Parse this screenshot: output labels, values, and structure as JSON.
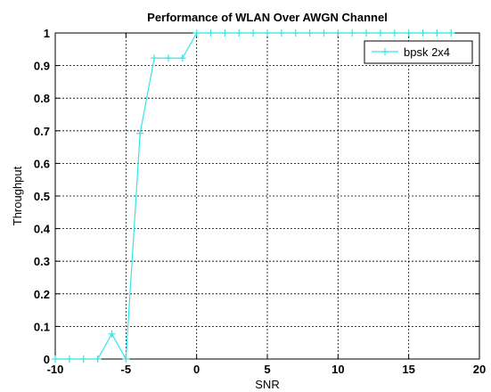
{
  "chart_data": {
    "type": "line",
    "title": "Performance of WLAN Over AWGN Channel",
    "xlabel": "SNR",
    "ylabel": "Throughput",
    "xlim": [
      -10,
      20
    ],
    "ylim": [
      0,
      1
    ],
    "xticks": [
      -10,
      -5,
      0,
      5,
      10,
      15,
      20
    ],
    "yticks": [
      0,
      0.1,
      0.2,
      0.3,
      0.4,
      0.5,
      0.6,
      0.7,
      0.8,
      0.9,
      1
    ],
    "xtick_labels": [
      "-10",
      "-5",
      "0",
      "5",
      "10",
      "15",
      "20"
    ],
    "ytick_labels": [
      "0",
      "0.1",
      "0.2",
      "0.3",
      "0.4",
      "0.5",
      "0.6",
      "0.7",
      "0.8",
      "0.9",
      "1"
    ],
    "grid": true,
    "legend_position": "top-right",
    "series": [
      {
        "name": "bpsk 2x4",
        "color": "#33e6e6",
        "marker": "plus",
        "x": [
          -10,
          -9,
          -8,
          -7,
          -6,
          -5,
          -4,
          -3,
          -2,
          -1,
          0,
          1,
          2,
          3,
          4,
          5,
          6,
          7,
          8,
          9,
          10,
          11,
          12,
          13,
          14,
          15,
          16,
          17,
          18
        ],
        "y": [
          0,
          0,
          0,
          0,
          0.077,
          0,
          0.692,
          0.923,
          0.923,
          0.923,
          1,
          1,
          1,
          1,
          1,
          1,
          1,
          1,
          1,
          1,
          1,
          1,
          1,
          1,
          1,
          1,
          1,
          1,
          1
        ]
      }
    ]
  }
}
